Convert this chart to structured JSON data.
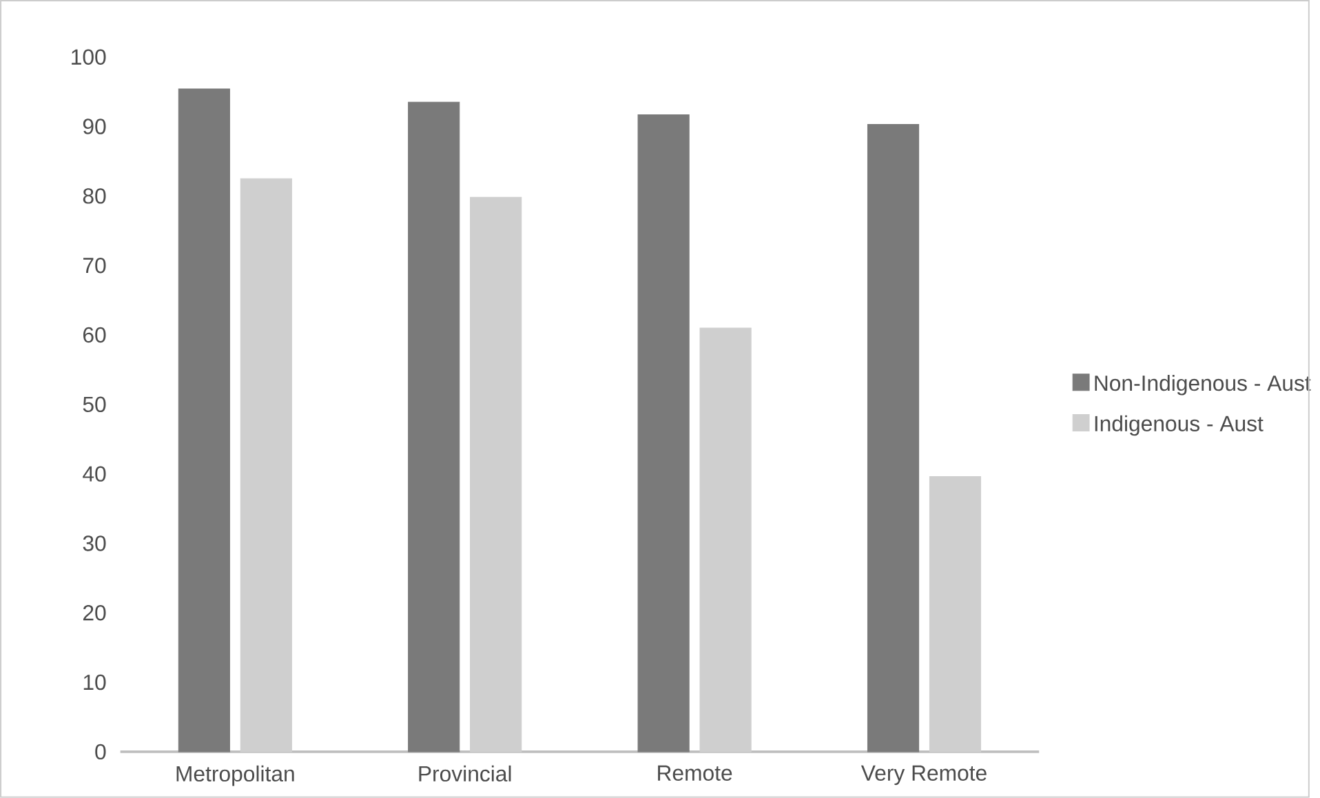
{
  "chart_data": {
    "type": "bar",
    "categories": [
      "Metropolitan",
      "Provincial",
      "Remote",
      "Very Remote"
    ],
    "series": [
      {
        "name": "Non-Indigenous - Aust",
        "color": "#7a7a7a",
        "values": [
          95.4,
          93.5,
          91.7,
          90.3
        ]
      },
      {
        "name": "Indigenous - Aust",
        "color": "#cfcfcf",
        "values": [
          82.5,
          79.8,
          61.0,
          39.6
        ]
      }
    ],
    "ylim": [
      0,
      100
    ],
    "yticks": [
      0,
      10,
      20,
      30,
      40,
      50,
      60,
      70,
      80,
      90,
      100
    ],
    "legend": "right"
  }
}
